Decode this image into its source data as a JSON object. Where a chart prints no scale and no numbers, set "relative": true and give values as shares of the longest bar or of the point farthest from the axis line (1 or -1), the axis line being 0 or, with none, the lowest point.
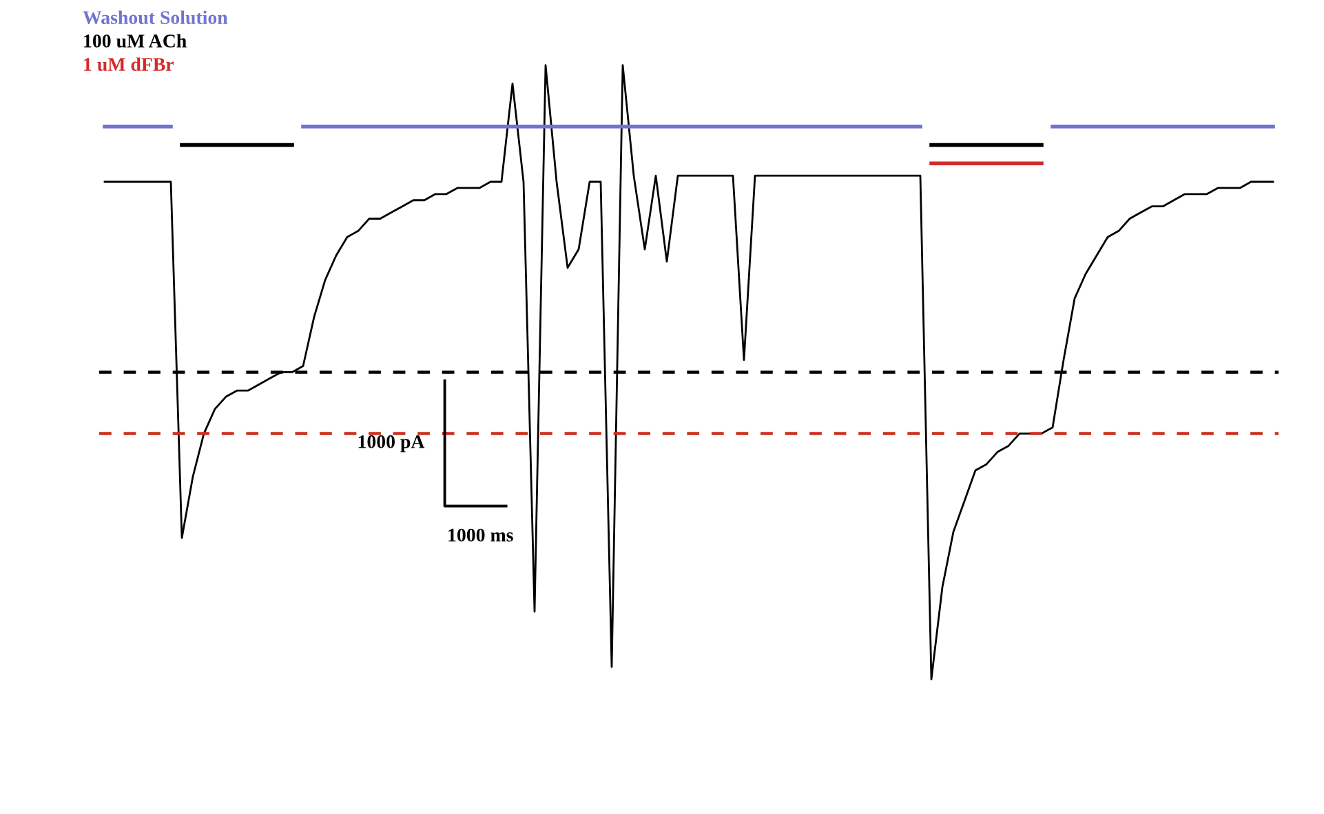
{
  "chart_data": {
    "type": "line",
    "relative": true,
    "line_style": "solid",
    "marker": "none",
    "categories": [
      null,
      null,
      null,
      null,
      null,
      null,
      null,
      null,
      null,
      null,
      null,
      null,
      null,
      null,
      null,
      null,
      null,
      null,
      null,
      null,
      null,
      null,
      null,
      null,
      null,
      null,
      null,
      null,
      null,
      null,
      null,
      null,
      null,
      null,
      null,
      null,
      null,
      null,
      null,
      null,
      null,
      null,
      null,
      null,
      null,
      null,
      null,
      null,
      null,
      null,
      null,
      null,
      null,
      null,
      null,
      null,
      null,
      null,
      null,
      null,
      null,
      null,
      null,
      null,
      null,
      null,
      null,
      null,
      null,
      null,
      null,
      null,
      null,
      null,
      null,
      null,
      null,
      null,
      null,
      null,
      null,
      null,
      null,
      null,
      null,
      null,
      null,
      null,
      null,
      null,
      null,
      null,
      null,
      null,
      null,
      null,
      null,
      null,
      null,
      null,
      null,
      null,
      null,
      null,
      null,
      null,
      null
    ],
    "series": [
      {
        "color": "#000000",
        "values": [
          0.81,
          0.81,
          0.81,
          0.81,
          0.81,
          0.81,
          0.81,
          0.23,
          0.33,
          0.4,
          0.44,
          0.46,
          0.47,
          0.47,
          0.48,
          0.49,
          0.5,
          0.5,
          0.51,
          0.59,
          0.65,
          0.69,
          0.72,
          0.73,
          0.75,
          0.75,
          0.76,
          0.77,
          0.78,
          0.78,
          0.79,
          0.79,
          0.8,
          0.8,
          0.8,
          0.81,
          0.81,
          0.97,
          0.81,
          0.11,
          1.0,
          0.81,
          0.67,
          0.7,
          0.81,
          0.81,
          0.02,
          1.0,
          0.82,
          0.7,
          0.82,
          0.68,
          0.82,
          0.82,
          0.82,
          0.82,
          0.82,
          0.82,
          0.52,
          0.82,
          0.82,
          0.82,
          0.82,
          0.82,
          0.82,
          0.82,
          0.82,
          0.82,
          0.82,
          0.82,
          0.82,
          0.82,
          0.82,
          0.82,
          0.82,
          0,
          0.15,
          0.24,
          0.29,
          0.34,
          0.35,
          0.37,
          0.38,
          0.4,
          0.4,
          0.4,
          0.41,
          0.52,
          0.62,
          0.66,
          0.69,
          0.72,
          0.73,
          0.75,
          0.76,
          0.77,
          0.77,
          0.78,
          0.79,
          0.79,
          0.79,
          0.8,
          0.8,
          0.8,
          0.81,
          0.81,
          0.81
        ]
      },
      {
        "name": "Washout Solution",
        "color": "#7074d0",
        "values": [
          0.9,
          0.9,
          0.9,
          0.9,
          0.9,
          0.9,
          0.9,
          null,
          null,
          null,
          null,
          null,
          null,
          null,
          null,
          null,
          null,
          null,
          0.9,
          0.9,
          0.9,
          0.9,
          0.9,
          0.9,
          0.9,
          0.9,
          0.9,
          0.9,
          0.9,
          0.9,
          0.9,
          0.9,
          0.9,
          0.9,
          0.9,
          0.9,
          0.9,
          0.9,
          0.9,
          0.9,
          0.9,
          0.9,
          0.9,
          0.9,
          0.9,
          0.9,
          0.9,
          0.9,
          0.9,
          0.9,
          0.9,
          0.9,
          0.9,
          0.9,
          0.9,
          0.9,
          0.9,
          0.9,
          0.9,
          0.9,
          0.9,
          0.9,
          0.9,
          0.9,
          0.9,
          0.9,
          0.9,
          0.9,
          0.9,
          0.9,
          0.9,
          0.9,
          0.9,
          0.9,
          0.9,
          null,
          null,
          null,
          null,
          null,
          null,
          null,
          null,
          null,
          null,
          null,
          0.9,
          0.9,
          0.9,
          0.9,
          0.9,
          0.9,
          0.9,
          0.9,
          0.9,
          0.9,
          0.9,
          0.9,
          0.9,
          0.9,
          0.9,
          0.9,
          0.9,
          0.9,
          0.9,
          0.9,
          0.9
        ]
      },
      {
        "name": "100 uM ACh",
        "color": "#000000",
        "values": [
          null,
          null,
          null,
          null,
          null,
          null,
          null,
          0.87,
          0.87,
          0.87,
          0.87,
          0.87,
          0.87,
          0.87,
          0.87,
          0.87,
          0.87,
          0.87,
          null,
          null,
          null,
          null,
          null,
          null,
          null,
          null,
          null,
          null,
          null,
          null,
          null,
          null,
          null,
          null,
          null,
          null,
          null,
          null,
          null,
          null,
          null,
          null,
          null,
          null,
          null,
          null,
          null,
          null,
          null,
          null,
          null,
          null,
          null,
          null,
          null,
          null,
          null,
          null,
          null,
          null,
          null,
          null,
          null,
          null,
          null,
          null,
          null,
          null,
          null,
          null,
          null,
          null,
          null,
          null,
          null,
          0.87,
          0.87,
          0.87,
          0.87,
          0.87,
          0.87,
          0.87,
          0.87,
          0.87,
          0.87,
          0.87,
          null,
          null,
          null,
          null,
          null,
          null,
          null,
          null,
          null,
          null,
          null,
          null,
          null,
          null,
          null,
          null,
          null,
          null,
          null,
          null,
          null
        ]
      },
      {
        "name": "1 uM dFBr",
        "color": "#d42a2a",
        "values": [
          null,
          null,
          null,
          null,
          null,
          null,
          null,
          null,
          null,
          null,
          null,
          null,
          null,
          null,
          null,
          null,
          null,
          null,
          null,
          null,
          null,
          null,
          null,
          null,
          null,
          null,
          null,
          null,
          null,
          null,
          null,
          null,
          null,
          null,
          null,
          null,
          null,
          null,
          null,
          null,
          null,
          null,
          null,
          null,
          null,
          null,
          null,
          null,
          null,
          null,
          null,
          null,
          null,
          null,
          null,
          null,
          null,
          null,
          null,
          null,
          null,
          null,
          null,
          null,
          null,
          null,
          null,
          null,
          null,
          null,
          null,
          null,
          null,
          null,
          null,
          0.84,
          0.84,
          0.84,
          0.84,
          0.84,
          0.84,
          0.84,
          0.84,
          0.84,
          0.84,
          0.84,
          null,
          null,
          null,
          null,
          null,
          null,
          null,
          null,
          null,
          null,
          null,
          null,
          null,
          null,
          null,
          null,
          null,
          null,
          null,
          null,
          null
        ]
      }
    ],
    "ref_lines": [
      {
        "axis": "y",
        "value": 0.5,
        "color": "#000000",
        "line_style": "dashed"
      },
      {
        "axis": "y",
        "value": 0.4,
        "color": "#c8321e",
        "line_style": "dashed"
      }
    ],
    "annotations": [
      "1000 pA",
      "1000 ms"
    ]
  }
}
